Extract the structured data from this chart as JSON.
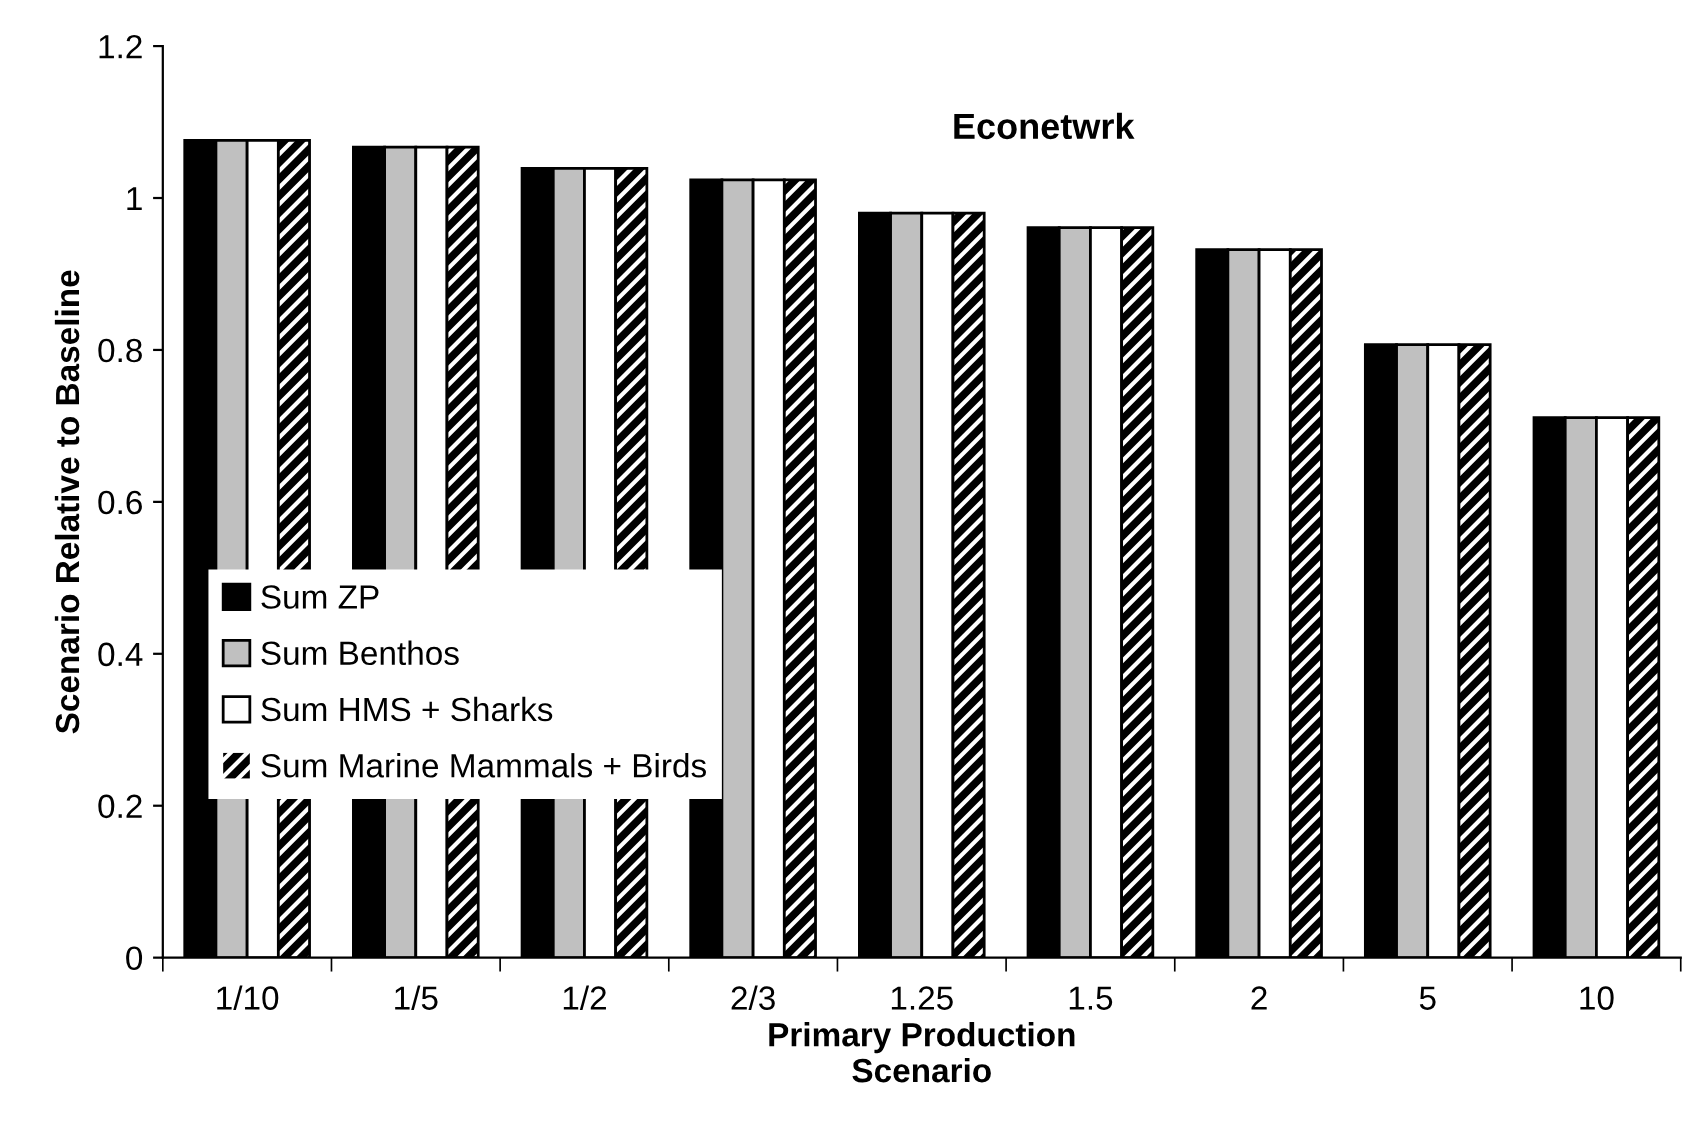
{
  "chart_data": {
    "type": "bar",
    "title": "Econetwrk",
    "xlabel": "Primary Production\nScenario",
    "ylabel": "Scenario Relative to Baseline",
    "categories": [
      "1/10",
      "1/5",
      "1/2",
      "2/3",
      "1.25",
      "1.5",
      "2",
      "5",
      "10"
    ],
    "series": [
      {
        "name": "Sum ZP",
        "color": "#000000",
        "values": [
          1.076,
          1.067,
          1.039,
          1.024,
          0.98,
          0.961,
          0.932,
          0.807,
          0.711
        ]
      },
      {
        "name": "Sum Benthos",
        "color": "#c0c0c0",
        "values": [
          1.076,
          1.067,
          1.039,
          1.024,
          0.98,
          0.961,
          0.932,
          0.807,
          0.711
        ]
      },
      {
        "name": "Sum HMS + Sharks",
        "color": "#ffffff",
        "values": [
          1.076,
          1.067,
          1.039,
          1.024,
          0.98,
          0.961,
          0.932,
          0.807,
          0.711
        ]
      },
      {
        "name": "Sum Marine Mammals + Birds",
        "color": "#000000",
        "values": [
          1.076,
          1.067,
          1.039,
          1.024,
          0.98,
          0.961,
          0.932,
          0.807,
          0.711
        ]
      }
    ],
    "ylim": [
      0,
      1.2
    ],
    "yticks": [
      0,
      0.2,
      0.4,
      0.6,
      0.8,
      1,
      1.2
    ],
    "legend": "left",
    "grid": false
  }
}
